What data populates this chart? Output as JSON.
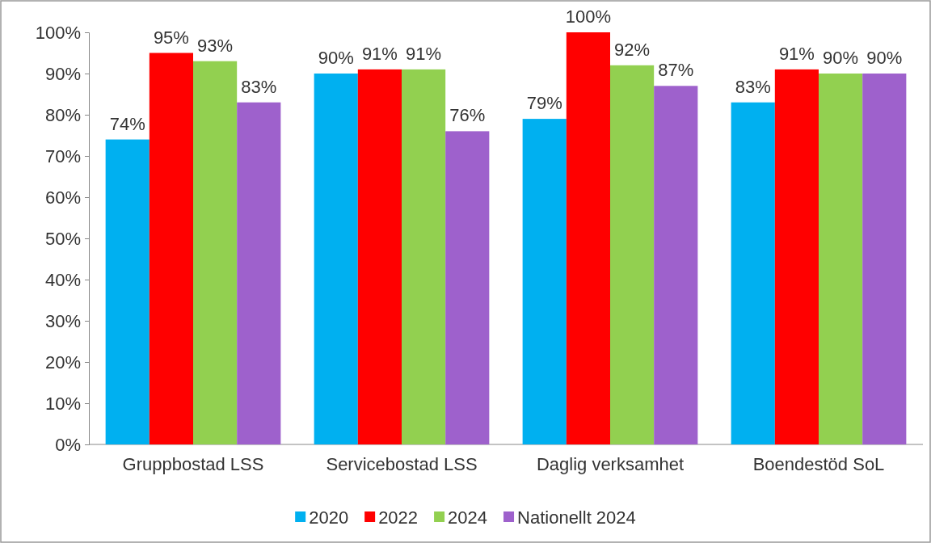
{
  "chart_data": {
    "type": "bar",
    "categories": [
      "Gruppbostad LSS",
      "Servicebostad LSS",
      "Daglig verksamhet",
      "Boendestöd SoL"
    ],
    "series": [
      {
        "name": "2020",
        "color": "#00b0f0",
        "values": [
          74,
          90,
          79,
          83
        ],
        "value_labels": [
          "74%",
          "90%",
          "79%",
          "83%"
        ]
      },
      {
        "name": "2022",
        "color": "#ff0000",
        "values": [
          95,
          91,
          100,
          91
        ],
        "value_labels": [
          "95%",
          "91%",
          "100%",
          "91%"
        ]
      },
      {
        "name": "2024",
        "color": "#92d050",
        "values": [
          93,
          91,
          92,
          90
        ],
        "value_labels": [
          "93%",
          "91%",
          "92%",
          "90%"
        ]
      },
      {
        "name": "Nationellt 2024",
        "color": "#9e61cc",
        "values": [
          83,
          76,
          87,
          90
        ],
        "value_labels": [
          "83%",
          "76%",
          "87%",
          "90%"
        ]
      }
    ],
    "ylim": [
      0,
      100
    ],
    "yticks": [
      {
        "value": 0,
        "label": "0%"
      },
      {
        "value": 10,
        "label": "10%"
      },
      {
        "value": 20,
        "label": "20%"
      },
      {
        "value": 30,
        "label": "30%"
      },
      {
        "value": 40,
        "label": "40%"
      },
      {
        "value": 50,
        "label": "50%"
      },
      {
        "value": 60,
        "label": "60%"
      },
      {
        "value": 70,
        "label": "70%"
      },
      {
        "value": 80,
        "label": "80%"
      },
      {
        "value": 90,
        "label": "90%"
      },
      {
        "value": 100,
        "label": "100%"
      }
    ],
    "grid": false,
    "legend": "bottom"
  }
}
